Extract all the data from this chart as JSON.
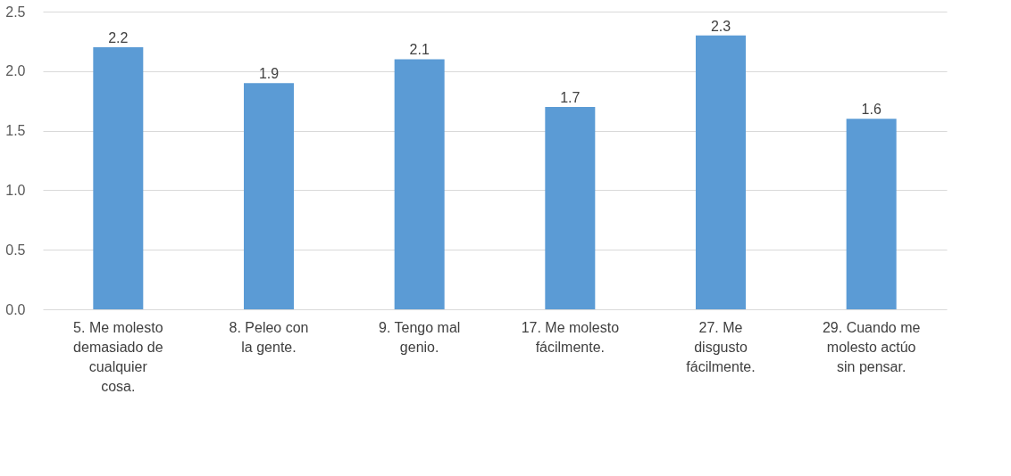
{
  "chart_data": {
    "type": "bar",
    "categories": [
      "5. Me molesto demasiado de cualquier cosa.",
      "8. Peleo con la gente.",
      "9. Tengo mal genio.",
      "17. Me molesto fácilmente.",
      "27. Me disgusto fácilmente.",
      "29. Cuando me molesto actúo sin pensar."
    ],
    "values": [
      2.2,
      1.9,
      2.1,
      1.7,
      2.3,
      1.6
    ],
    "color": "#5b9bd5",
    "ylim": [
      0,
      2.5
    ],
    "yticks": [
      {
        "value": 0,
        "label": "0.0"
      },
      {
        "value": 0.5,
        "label": "0.5"
      },
      {
        "value": 1,
        "label": "1.0"
      },
      {
        "value": 1.5,
        "label": "1.5"
      },
      {
        "value": 2,
        "label": "2.0"
      },
      {
        "value": 2.5,
        "label": "2.5"
      }
    ],
    "grid": "y",
    "data_labels": true
  }
}
